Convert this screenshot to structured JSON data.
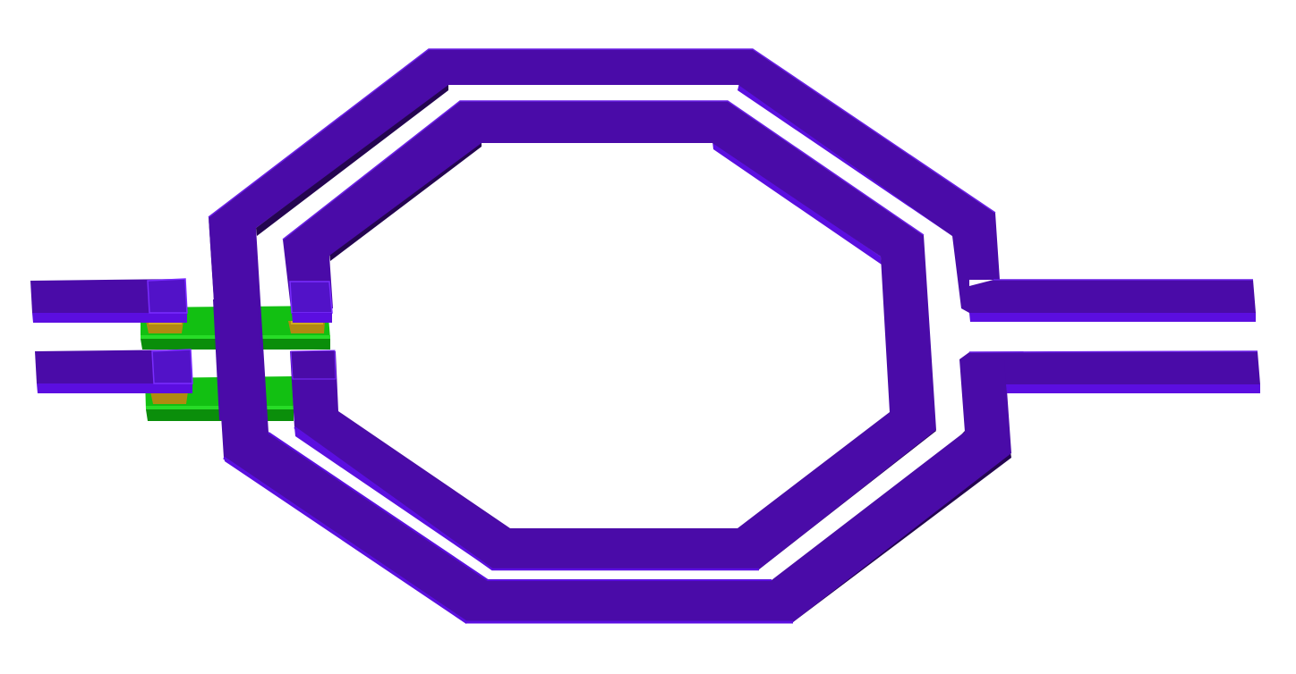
{
  "diagram": {
    "kind": "octagonal-two-turn-inductor-3d-layout",
    "text_labels": [],
    "colors": {
      "background": "#ffffff",
      "metal_top": "#4a0ba8",
      "metal_side": "#5b0ee0",
      "metal_dark_side": "#240550",
      "metal_edge": "#7a2cff",
      "underpass_green": "#12c012",
      "underpass_green_light": "#27dc27",
      "underpass_green_dark": "#0a8e0a",
      "via_gold": "#b08a10",
      "via_gold_light": "#d0aa20"
    },
    "components": [
      {
        "id": "outer-turn",
        "kind": "spiral-turn"
      },
      {
        "id": "inner-turn",
        "kind": "spiral-turn"
      },
      {
        "id": "port-upper-right",
        "kind": "lead"
      },
      {
        "id": "port-lower-right",
        "kind": "lead"
      },
      {
        "id": "lead-upper-left",
        "kind": "lead"
      },
      {
        "id": "lead-lower-left",
        "kind": "lead"
      },
      {
        "id": "underpass-upper",
        "kind": "crossover"
      },
      {
        "id": "underpass-lower",
        "kind": "crossover"
      },
      {
        "id": "vias",
        "kind": "via-set"
      }
    ]
  }
}
